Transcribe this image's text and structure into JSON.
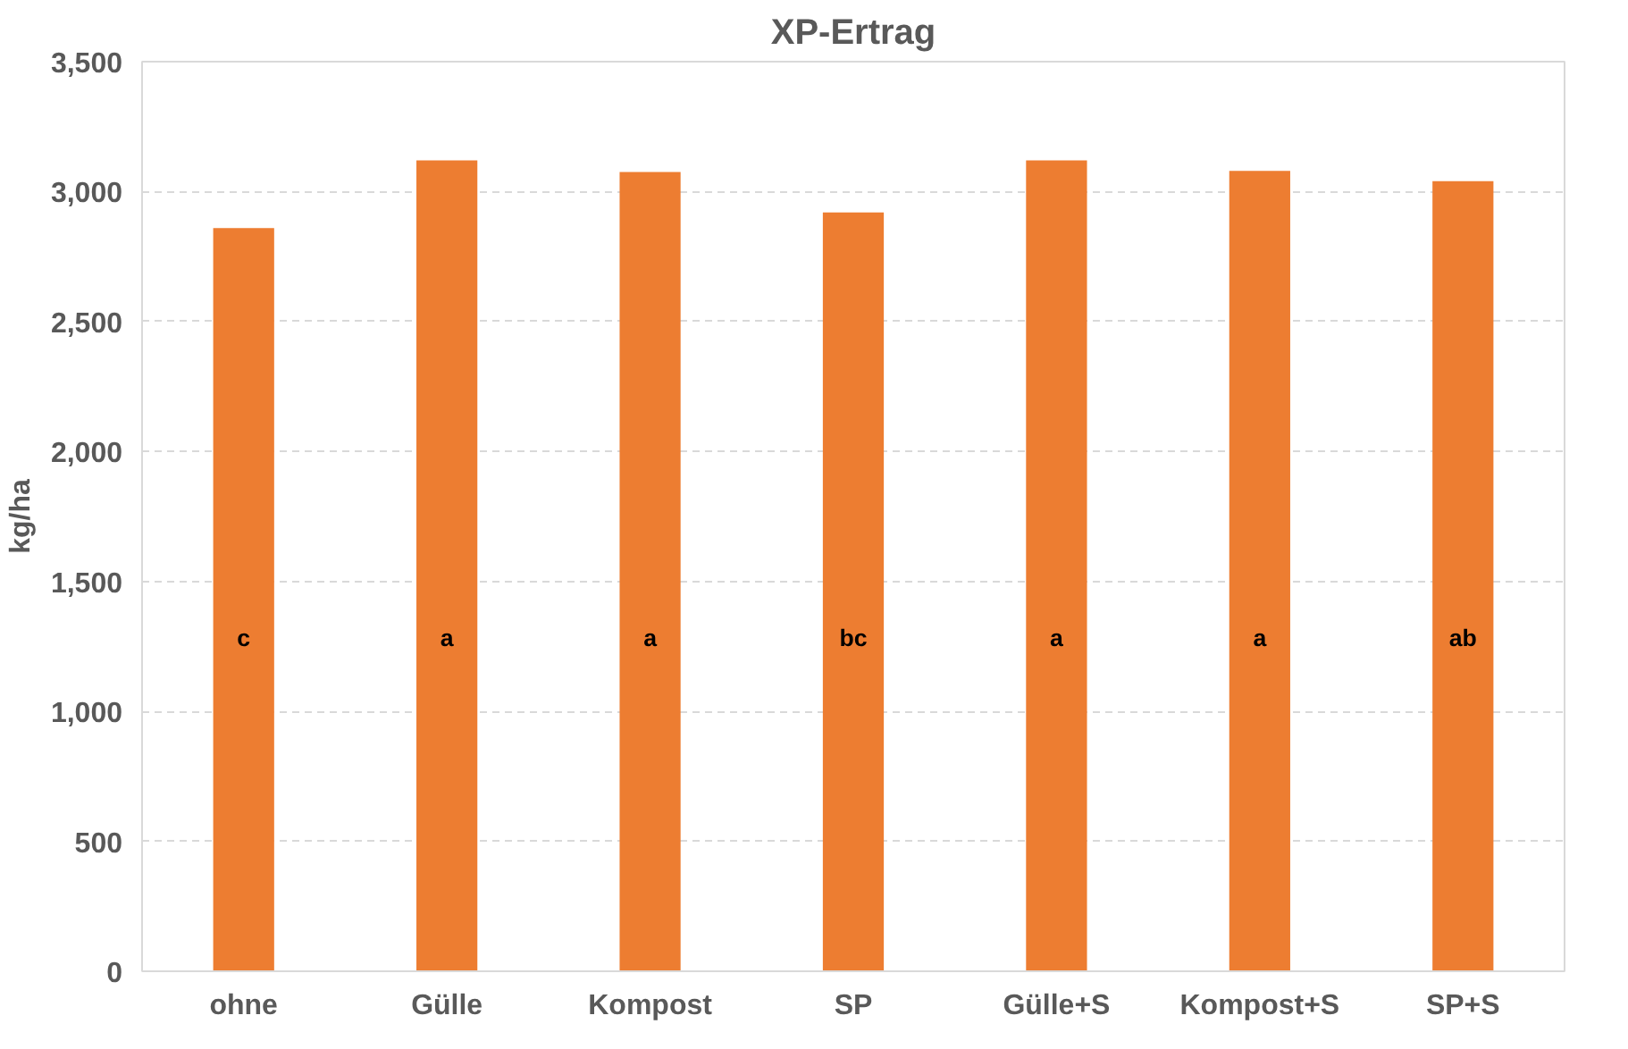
{
  "chart_data": {
    "type": "bar",
    "title": "XP-Ertrag",
    "ylabel": "kg/ha",
    "categories": [
      "ohne",
      "Gülle",
      "Kompost",
      "SP",
      "Gülle+S",
      "Kompost+S",
      "SP+S"
    ],
    "values": [
      2860,
      3120,
      3075,
      2920,
      3120,
      3080,
      3040
    ],
    "color": "#ed7d31",
    "ylim": [
      0,
      3500
    ],
    "yticks": [
      {
        "value": 0,
        "label": "0"
      },
      {
        "value": 500,
        "label": "500"
      },
      {
        "value": 1000,
        "label": "1,000"
      },
      {
        "value": 1500,
        "label": "1,500"
      },
      {
        "value": 2000,
        "label": "2,000"
      },
      {
        "value": 2500,
        "label": "2,500"
      },
      {
        "value": 3000,
        "label": "3,000"
      },
      {
        "value": 3500,
        "label": "3,500"
      }
    ],
    "grid": "y",
    "value_labels": [
      "c",
      "a",
      "a",
      "bc",
      "a",
      "a",
      "ab"
    ]
  }
}
